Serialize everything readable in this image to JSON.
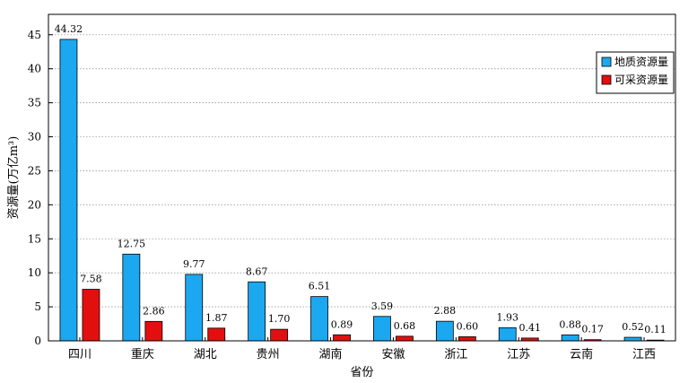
{
  "chart_data": {
    "type": "bar",
    "categories": [
      "四川",
      "重庆",
      "湖北",
      "贵州",
      "湖南",
      "安徽",
      "浙江",
      "江苏",
      "云南",
      "江西"
    ],
    "series": [
      {
        "name": "地质资源量",
        "color": "#1ba8f0",
        "values": [
          44.32,
          12.75,
          9.77,
          8.67,
          6.51,
          3.59,
          2.88,
          1.93,
          0.88,
          0.52
        ],
        "labels": [
          "44.32",
          "12.75",
          "9.77",
          "8.67",
          "6.51",
          "3.59",
          "2.88",
          "1.93",
          "0.88",
          "0.52"
        ]
      },
      {
        "name": "可采资源量",
        "color": "#e30f0f",
        "values": [
          7.58,
          2.86,
          1.87,
          1.7,
          0.89,
          0.68,
          0.6,
          0.41,
          0.17,
          0.11
        ],
        "labels": [
          "7.58",
          "2.86",
          "1.87",
          "1.70",
          "0.89",
          "0.68",
          "0.60",
          "0.41",
          "0.17",
          "0.11"
        ]
      }
    ],
    "xlabel": "省份",
    "ylabel": "资源量(万亿m³)",
    "ylim": [
      0,
      48
    ],
    "yticks": [
      "0",
      "5",
      "10",
      "15",
      "20",
      "25",
      "30",
      "35",
      "40",
      "45"
    ],
    "grid": "horizontal dotted",
    "legend_position": "top-right"
  }
}
